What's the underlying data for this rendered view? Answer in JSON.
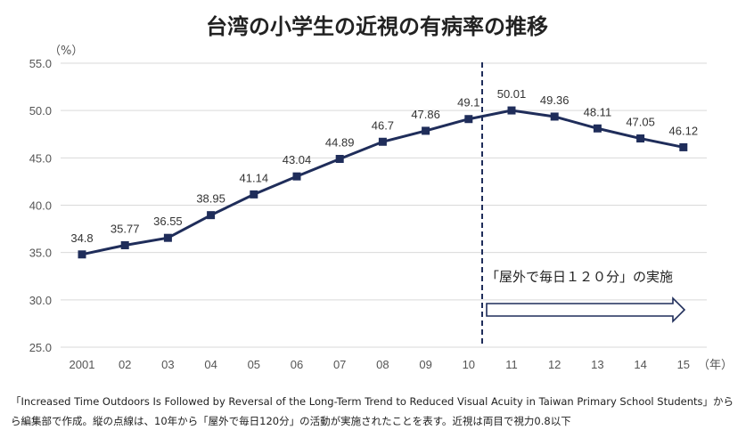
{
  "chart_data": {
    "type": "line",
    "title": "台湾の小学生の近視の有病率の推移",
    "y_unit": "（%）",
    "x_unit": "（年）",
    "categories": [
      "2001",
      "02",
      "03",
      "04",
      "05",
      "06",
      "07",
      "08",
      "09",
      "10",
      "11",
      "12",
      "13",
      "14",
      "15"
    ],
    "series": [
      {
        "values": [
          34.8,
          35.77,
          36.55,
          38.95,
          41.14,
          43.04,
          44.89,
          46.7,
          47.86,
          49.1,
          50.01,
          49.36,
          48.11,
          47.05,
          46.12
        ]
      }
    ],
    "data_labels": [
      "34.8",
      "35.77",
      "36.55",
      "38.95",
      "41.14",
      "43.04",
      "44.89",
      "46.7",
      "47.86",
      "49.1",
      "50.01",
      "49.36",
      "48.11",
      "47.05",
      "46.12"
    ],
    "ylim": [
      25,
      55
    ],
    "yticks": [
      "25.0",
      "30.0",
      "35.0",
      "40.0",
      "45.0",
      "50.0",
      "55.0"
    ],
    "grid": true,
    "line_color": "#1f2d5a",
    "annotation": "「屋外で毎日１２０分」の実施"
  },
  "footnote": {
    "line1": "「Increased Time Outdoors Is Followed by Reversal of the Long-Term Trend to Reduced Visual Acuity in Taiwan Primary School Students」から",
    "line2": "ら編集部で作成。縦の点線は、10年から「屋外で毎日120分」の活動が実施されたことを表す。近視は両目で視力0.8以下"
  }
}
